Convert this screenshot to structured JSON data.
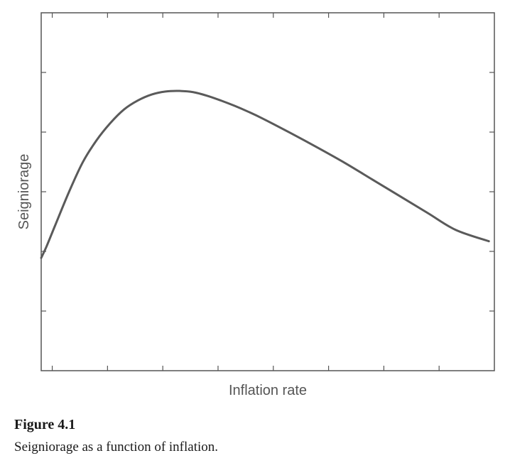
{
  "chart_data": {
    "type": "line",
    "title": "",
    "xlabel": "Inflation rate",
    "ylabel": "Seigniorage",
    "xlim": [
      0,
      8.2
    ],
    "ylim": [
      0,
      6
    ],
    "grid": false,
    "x_ticks": [
      0.2,
      1.2,
      2.2,
      3.2,
      4.2,
      5.2,
      6.2,
      7.2
    ],
    "y_ticks": [
      1,
      2,
      3,
      4,
      5
    ],
    "series": [
      {
        "name": "",
        "color": "#5a5a5a",
        "x": [
          0.0,
          0.1,
          0.25,
          0.5,
          0.75,
          1.0,
          1.25,
          1.5,
          1.75,
          2.0,
          2.25,
          2.5,
          2.75,
          3.0,
          3.25,
          3.5,
          3.75,
          4.0,
          4.5,
          5.0,
          5.5,
          6.0,
          6.5,
          7.0,
          7.5,
          8.1
        ],
        "y": [
          1.89,
          2.09,
          2.43,
          2.99,
          3.49,
          3.86,
          4.15,
          4.38,
          4.53,
          4.63,
          4.68,
          4.69,
          4.67,
          4.61,
          4.53,
          4.44,
          4.34,
          4.23,
          3.99,
          3.74,
          3.48,
          3.2,
          2.92,
          2.64,
          2.36,
          2.17
        ]
      }
    ]
  },
  "caption": {
    "label": "Figure 4.1",
    "text": "Seigniorage as a function of inflation."
  }
}
